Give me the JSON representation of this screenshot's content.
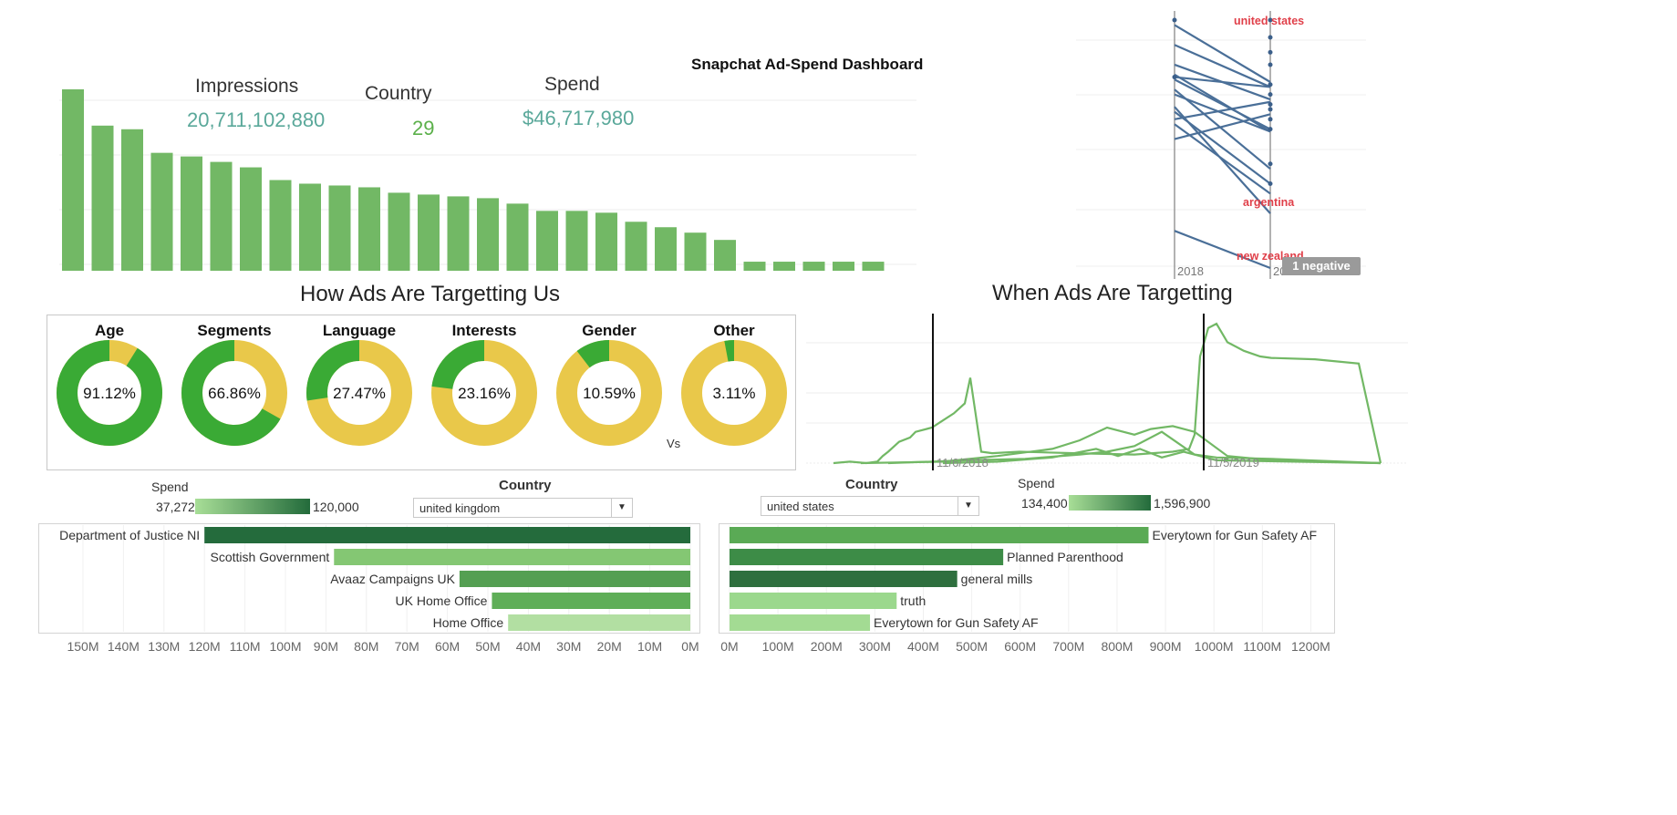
{
  "dashboard_title": "Snapchat Ad-Spend Dashboard",
  "kpis": {
    "impressions": {
      "label": "Impressions",
      "value": "20,711,102,880"
    },
    "country": {
      "label": "Country",
      "value": "29"
    },
    "spend": {
      "label": "Spend",
      "value": "$46,717,980"
    }
  },
  "sections": {
    "targeting_title": "How Ads Are Targetting Us",
    "timing_title": "When Ads Are Targetting",
    "vs_label": "Vs"
  },
  "colors": {
    "green": "#3aaa35",
    "yellow": "#e9c84a",
    "bar_green": "#72b865",
    "slope_blue": "#4a6f98",
    "red_label": "#e0404a",
    "line_green": "#72b865"
  },
  "left_filter": {
    "spend_label": "Spend",
    "spend_min": "37,272",
    "spend_max": "120,000",
    "country_label": "Country",
    "country_value": "united kingdom"
  },
  "right_filter": {
    "country_label": "Country",
    "country_value": "united states",
    "spend_label": "Spend",
    "spend_min": "134,400",
    "spend_max": "1,596,900"
  },
  "badge": "1 negative",
  "chart_data": [
    {
      "id": "top_bar",
      "type": "bar",
      "values": [
        100,
        80,
        78,
        65,
        63,
        60,
        57,
        50,
        48,
        47,
        46,
        43,
        42,
        41,
        40,
        37,
        33,
        33,
        32,
        27,
        24,
        21,
        17,
        5,
        5,
        5,
        5,
        5
      ]
    },
    {
      "id": "targeting_donuts",
      "type": "pie",
      "items": [
        {
          "label": "Age",
          "pct": 91.12,
          "display": "91.12%"
        },
        {
          "label": "Segments",
          "pct": 66.86,
          "display": "66.86%"
        },
        {
          "label": "Language",
          "pct": 27.47,
          "display": "27.47%"
        },
        {
          "label": "Interests",
          "pct": 23.16,
          "display": "23.16%"
        },
        {
          "label": "Gender",
          "pct": 10.59,
          "display": "10.59%"
        },
        {
          "label": "Other",
          "pct": 3.11,
          "display": "3.11%"
        }
      ]
    },
    {
      "id": "slope",
      "type": "line",
      "x_labels": [
        "2018",
        "2019"
      ],
      "x_label_visible": [
        "2018",
        "20"
      ],
      "annotations": [
        "united states",
        "argentina",
        "new zealand"
      ],
      "lines": [
        [
          0.15,
          0.0
        ],
        [
          0.65,
          0.22
        ],
        [
          0.63,
          0.34
        ],
        [
          0.58,
          0.3
        ],
        [
          0.72,
          0.4
        ],
        [
          0.7,
          0.55
        ],
        [
          0.78,
          0.55
        ],
        [
          0.6,
          0.67
        ],
        [
          0.52,
          0.62
        ],
        [
          0.82,
          0.68
        ],
        [
          0.76,
          0.56
        ],
        [
          0.77,
          0.73
        ],
        [
          0.9,
          0.73
        ],
        [
          0.98,
          0.75
        ]
      ],
      "y_range": [
        0,
        1
      ],
      "right_dots": [
        0.34,
        0.42,
        0.56,
        0.6,
        0.64,
        0.66,
        0.7,
        0.74,
        0.82,
        0.87,
        0.93,
        1.0
      ],
      "left_dots": [
        0.77,
        1.0
      ]
    },
    {
      "id": "timeline",
      "type": "line",
      "ref_labels": [
        "11/6/2018",
        "11/5/2019"
      ],
      "y_range": [
        0,
        1
      ],
      "series": [
        {
          "x": [
            0.0,
            0.03,
            0.06,
            0.08,
            0.09,
            0.1,
            0.12,
            0.14,
            0.15,
            0.18,
            0.2,
            0.22,
            0.24,
            0.25,
            0.27,
            0.29,
            0.34,
            0.44,
            0.55,
            0.62,
            0.65,
            0.66,
            0.67,
            0.685,
            0.7,
            0.72,
            0.75,
            0.78,
            0.8,
            0.88,
            0.96,
            1.0
          ],
          "y": [
            0.0,
            0.01,
            0.0,
            0.01,
            0.05,
            0.08,
            0.15,
            0.18,
            0.22,
            0.25,
            0.3,
            0.35,
            0.42,
            0.6,
            0.08,
            0.07,
            0.08,
            0.07,
            0.06,
            0.08,
            0.1,
            0.2,
            0.75,
            0.95,
            0.98,
            0.85,
            0.79,
            0.75,
            0.74,
            0.73,
            0.7,
            0.0
          ]
        },
        {
          "x": [
            0.05,
            0.2,
            0.3,
            0.4,
            0.45,
            0.5,
            0.55,
            0.58,
            0.62,
            0.66,
            0.72,
            0.8,
            1.0
          ],
          "y": [
            0.0,
            0.01,
            0.05,
            0.1,
            0.16,
            0.25,
            0.2,
            0.24,
            0.26,
            0.22,
            0.05,
            0.02,
            0.0
          ]
        },
        {
          "x": [
            0.1,
            0.25,
            0.35,
            0.45,
            0.5,
            0.55,
            0.6,
            0.63,
            0.66,
            0.7,
            0.8,
            1.0
          ],
          "y": [
            0.0,
            0.02,
            0.03,
            0.06,
            0.08,
            0.12,
            0.22,
            0.14,
            0.06,
            0.04,
            0.03,
            0.0
          ]
        },
        {
          "x": [
            0.2,
            0.3,
            0.4,
            0.48,
            0.52,
            0.56,
            0.6,
            0.64,
            0.7,
            1.0
          ],
          "y": [
            0.0,
            0.01,
            0.04,
            0.1,
            0.05,
            0.1,
            0.04,
            0.08,
            0.02,
            0.0
          ]
        }
      ]
    },
    {
      "id": "uk_advertisers",
      "type": "bar",
      "orientation": "horizontal-reversed",
      "categories": [
        "Department of Justice NI",
        "Scottish Government",
        "Avaaz Campaigns UK",
        "UK Home Office",
        "Home Office"
      ],
      "values": [
        120,
        88,
        57,
        49,
        45
      ],
      "colors": [
        "#246b3c",
        "#84c773",
        "#549f52",
        "#5fae58",
        "#b2dfa2"
      ],
      "ticks": [
        "150M",
        "140M",
        "130M",
        "120M",
        "110M",
        "100M",
        "90M",
        "80M",
        "70M",
        "60M",
        "50M",
        "40M",
        "30M",
        "20M",
        "10M",
        "0M"
      ],
      "xlim": [
        0,
        150
      ]
    },
    {
      "id": "us_advertisers",
      "type": "bar",
      "orientation": "horizontal",
      "categories": [
        "Everytown for Gun Safety AF",
        "Planned Parenthood",
        "general mills",
        "truth",
        "Everytown for Gun Safety AF"
      ],
      "values": [
        865,
        565,
        470,
        345,
        290
      ],
      "colors": [
        "#5aaa55",
        "#3d8c47",
        "#2e6f3e",
        "#9bd88d",
        "#a3db93"
      ],
      "ticks": [
        "0M",
        "100M",
        "200M",
        "300M",
        "400M",
        "500M",
        "600M",
        "700M",
        "800M",
        "900M",
        "1000M",
        "1100M",
        "1200M"
      ],
      "xlim": [
        0,
        1250
      ]
    }
  ]
}
